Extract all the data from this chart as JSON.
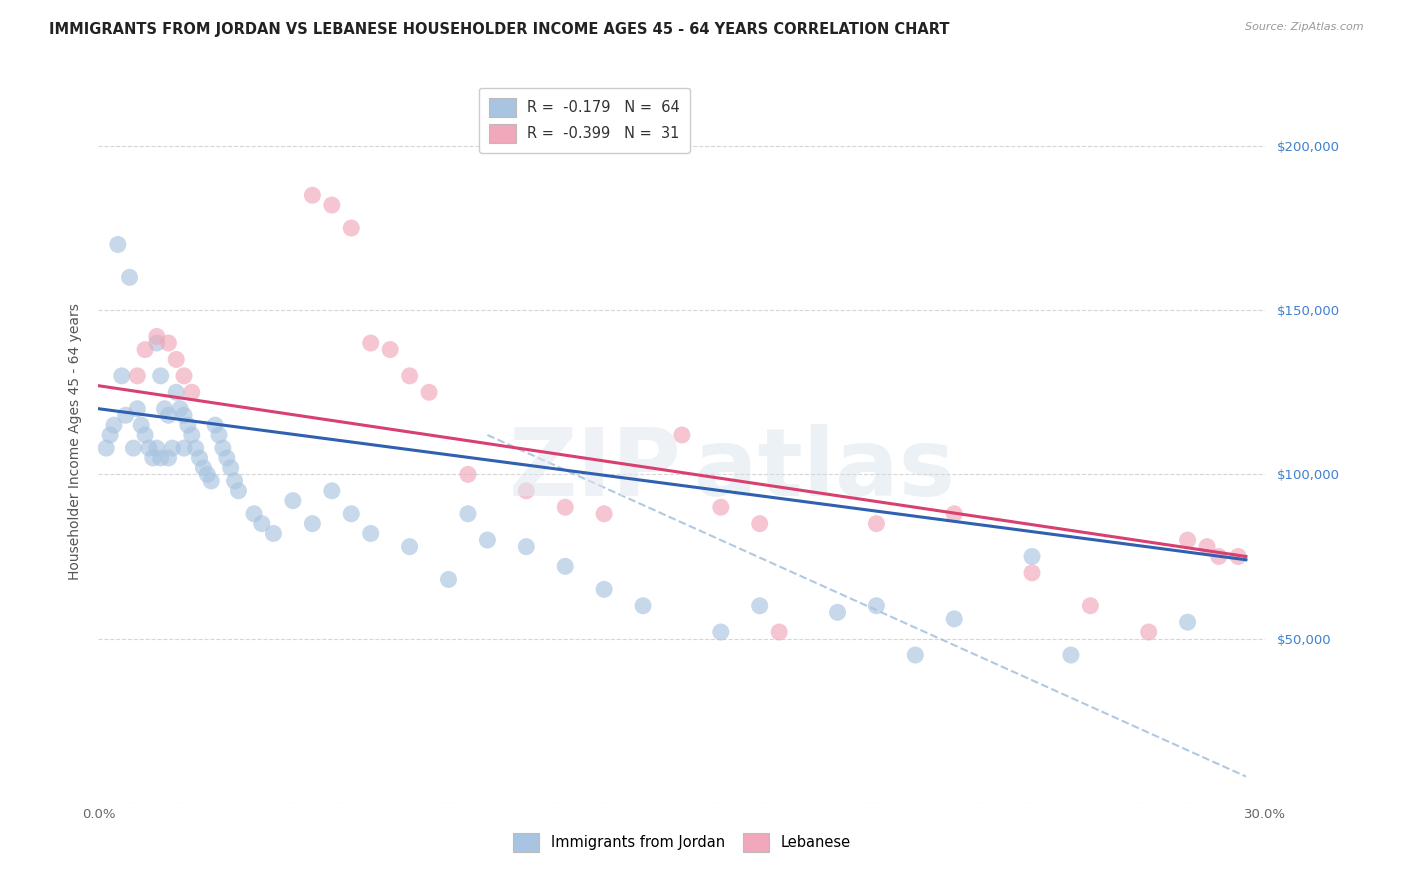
{
  "title": "IMMIGRANTS FROM JORDAN VS LEBANESE HOUSEHOLDER INCOME AGES 45 - 64 YEARS CORRELATION CHART",
  "source": "Source: ZipAtlas.com",
  "ylabel": "Householder Income Ages 45 - 64 years",
  "xlim": [
    0.0,
    0.3
  ],
  "ylim": [
    0,
    220000
  ],
  "background_color": "#ffffff",
  "grid_color": "#cccccc",
  "jordan_color": "#a8c4e0",
  "lebanese_color": "#f0a8ba",
  "jordan_line_color": "#3060b0",
  "lebanese_line_color": "#d84070",
  "dashed_line_color": "#a8c4e0",
  "ytick_color": "#4080d0",
  "jordan_x": [
    0.002,
    0.003,
    0.004,
    0.005,
    0.006,
    0.007,
    0.008,
    0.009,
    0.01,
    0.011,
    0.012,
    0.013,
    0.014,
    0.015,
    0.015,
    0.016,
    0.016,
    0.017,
    0.018,
    0.018,
    0.019,
    0.02,
    0.021,
    0.022,
    0.022,
    0.023,
    0.024,
    0.025,
    0.026,
    0.027,
    0.028,
    0.029,
    0.03,
    0.031,
    0.032,
    0.033,
    0.034,
    0.035,
    0.036,
    0.04,
    0.042,
    0.045,
    0.05,
    0.055,
    0.06,
    0.065,
    0.07,
    0.08,
    0.09,
    0.095,
    0.1,
    0.11,
    0.12,
    0.13,
    0.14,
    0.16,
    0.17,
    0.19,
    0.2,
    0.21,
    0.22,
    0.24,
    0.25,
    0.28
  ],
  "jordan_y": [
    108000,
    112000,
    115000,
    170000,
    130000,
    118000,
    160000,
    108000,
    120000,
    115000,
    112000,
    108000,
    105000,
    140000,
    108000,
    130000,
    105000,
    120000,
    118000,
    105000,
    108000,
    125000,
    120000,
    118000,
    108000,
    115000,
    112000,
    108000,
    105000,
    102000,
    100000,
    98000,
    115000,
    112000,
    108000,
    105000,
    102000,
    98000,
    95000,
    88000,
    85000,
    82000,
    92000,
    85000,
    95000,
    88000,
    82000,
    78000,
    68000,
    88000,
    80000,
    78000,
    72000,
    65000,
    60000,
    52000,
    60000,
    58000,
    60000,
    45000,
    56000,
    75000,
    45000,
    55000
  ],
  "lebanese_x": [
    0.01,
    0.012,
    0.015,
    0.018,
    0.02,
    0.022,
    0.024,
    0.055,
    0.06,
    0.065,
    0.07,
    0.075,
    0.08,
    0.085,
    0.095,
    0.11,
    0.12,
    0.13,
    0.15,
    0.16,
    0.17,
    0.175,
    0.2,
    0.22,
    0.24,
    0.255,
    0.27,
    0.28,
    0.285,
    0.288,
    0.293
  ],
  "lebanese_y": [
    130000,
    138000,
    142000,
    140000,
    135000,
    130000,
    125000,
    185000,
    182000,
    175000,
    140000,
    138000,
    130000,
    125000,
    100000,
    95000,
    90000,
    88000,
    112000,
    90000,
    85000,
    52000,
    85000,
    88000,
    70000,
    60000,
    52000,
    80000,
    78000,
    75000,
    75000
  ],
  "jordan_line": [
    0.0,
    0.295,
    120000,
    74000
  ],
  "lebanese_line": [
    0.0,
    0.295,
    127000,
    75000
  ],
  "dashed_line": [
    0.1,
    0.295,
    112000,
    8000
  ],
  "title_fontsize": 10.5,
  "source_fontsize": 8,
  "axis_label_fontsize": 10,
  "tick_fontsize": 9.5,
  "legend_fontsize": 10.5
}
